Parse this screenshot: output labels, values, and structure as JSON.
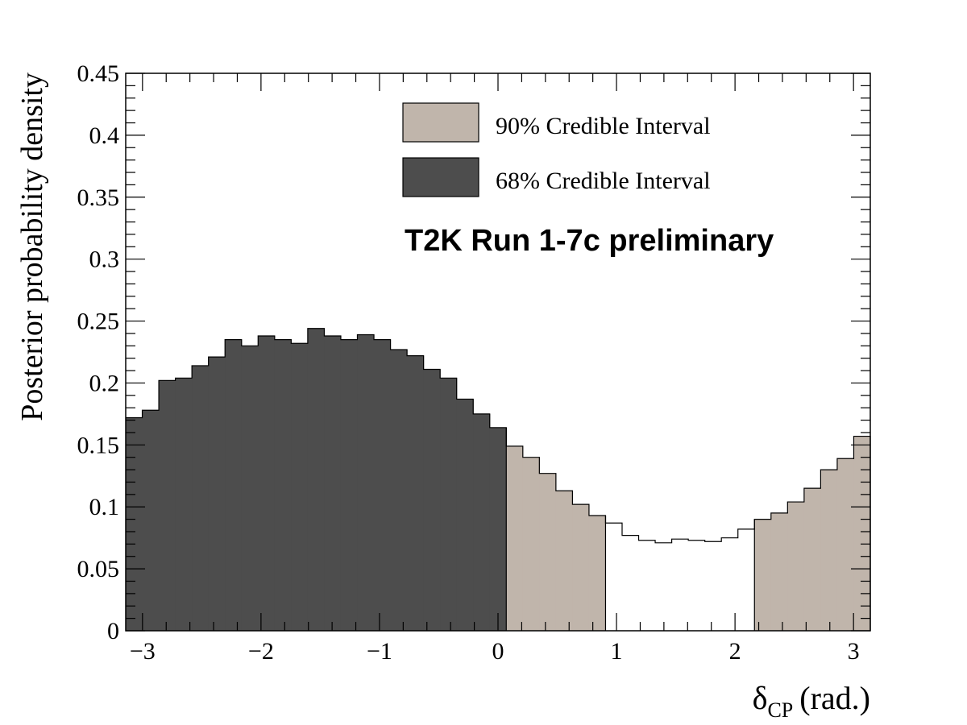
{
  "chart_data": {
    "type": "bar",
    "subtype": "histogram",
    "xlabel": "δCP (rad.)",
    "xlabel_main": "δ",
    "xlabel_sub": "CP",
    "xlabel_unit": "(rad.)",
    "ylabel": "Posterior probability density",
    "xlim": [
      -3.1416,
      3.1416
    ],
    "ylim": [
      0,
      0.45
    ],
    "x_ticks": [
      "−3",
      "−2",
      "−1",
      "0",
      "1",
      "2",
      "3"
    ],
    "y_ticks": [
      "0",
      "0.05",
      "0.1",
      "0.15",
      "0.2",
      "0.25",
      "0.3",
      "0.35",
      "0.4",
      "0.45"
    ],
    "bins": 45,
    "values": [
      0.172,
      0.178,
      0.202,
      0.204,
      0.214,
      0.221,
      0.235,
      0.23,
      0.238,
      0.235,
      0.232,
      0.244,
      0.238,
      0.235,
      0.239,
      0.235,
      0.227,
      0.222,
      0.211,
      0.204,
      0.187,
      0.175,
      0.164,
      0.149,
      0.14,
      0.127,
      0.113,
      0.102,
      0.093,
      0.087,
      0.077,
      0.073,
      0.071,
      0.074,
      0.073,
      0.072,
      0.075,
      0.082,
      0.09,
      0.095,
      0.104,
      0.115,
      0.13,
      0.139,
      0.157
    ],
    "regions_by_bin": [
      {
        "name": "68% Credible Interval",
        "from_bin": 0,
        "to_bin": 22,
        "color": "#4d4d4d"
      },
      {
        "name": "90% Credible Interval",
        "from_bin": 23,
        "to_bin": 28,
        "color": "#c0b5ab"
      },
      {
        "name": "outside",
        "from_bin": 29,
        "to_bin": 37,
        "color": "#ffffff"
      },
      {
        "name": "90% Credible Interval",
        "from_bin": 38,
        "to_bin": 44,
        "color": "#c0b5ab"
      }
    ],
    "legend": [
      {
        "label": "90% Credible Interval",
        "color": "#c0b5ab"
      },
      {
        "label": "68% Credible Interval",
        "color": "#4d4d4d"
      }
    ],
    "legend_position": "top-right",
    "annotation": "T2K Run 1-7c preliminary",
    "grid": false
  }
}
